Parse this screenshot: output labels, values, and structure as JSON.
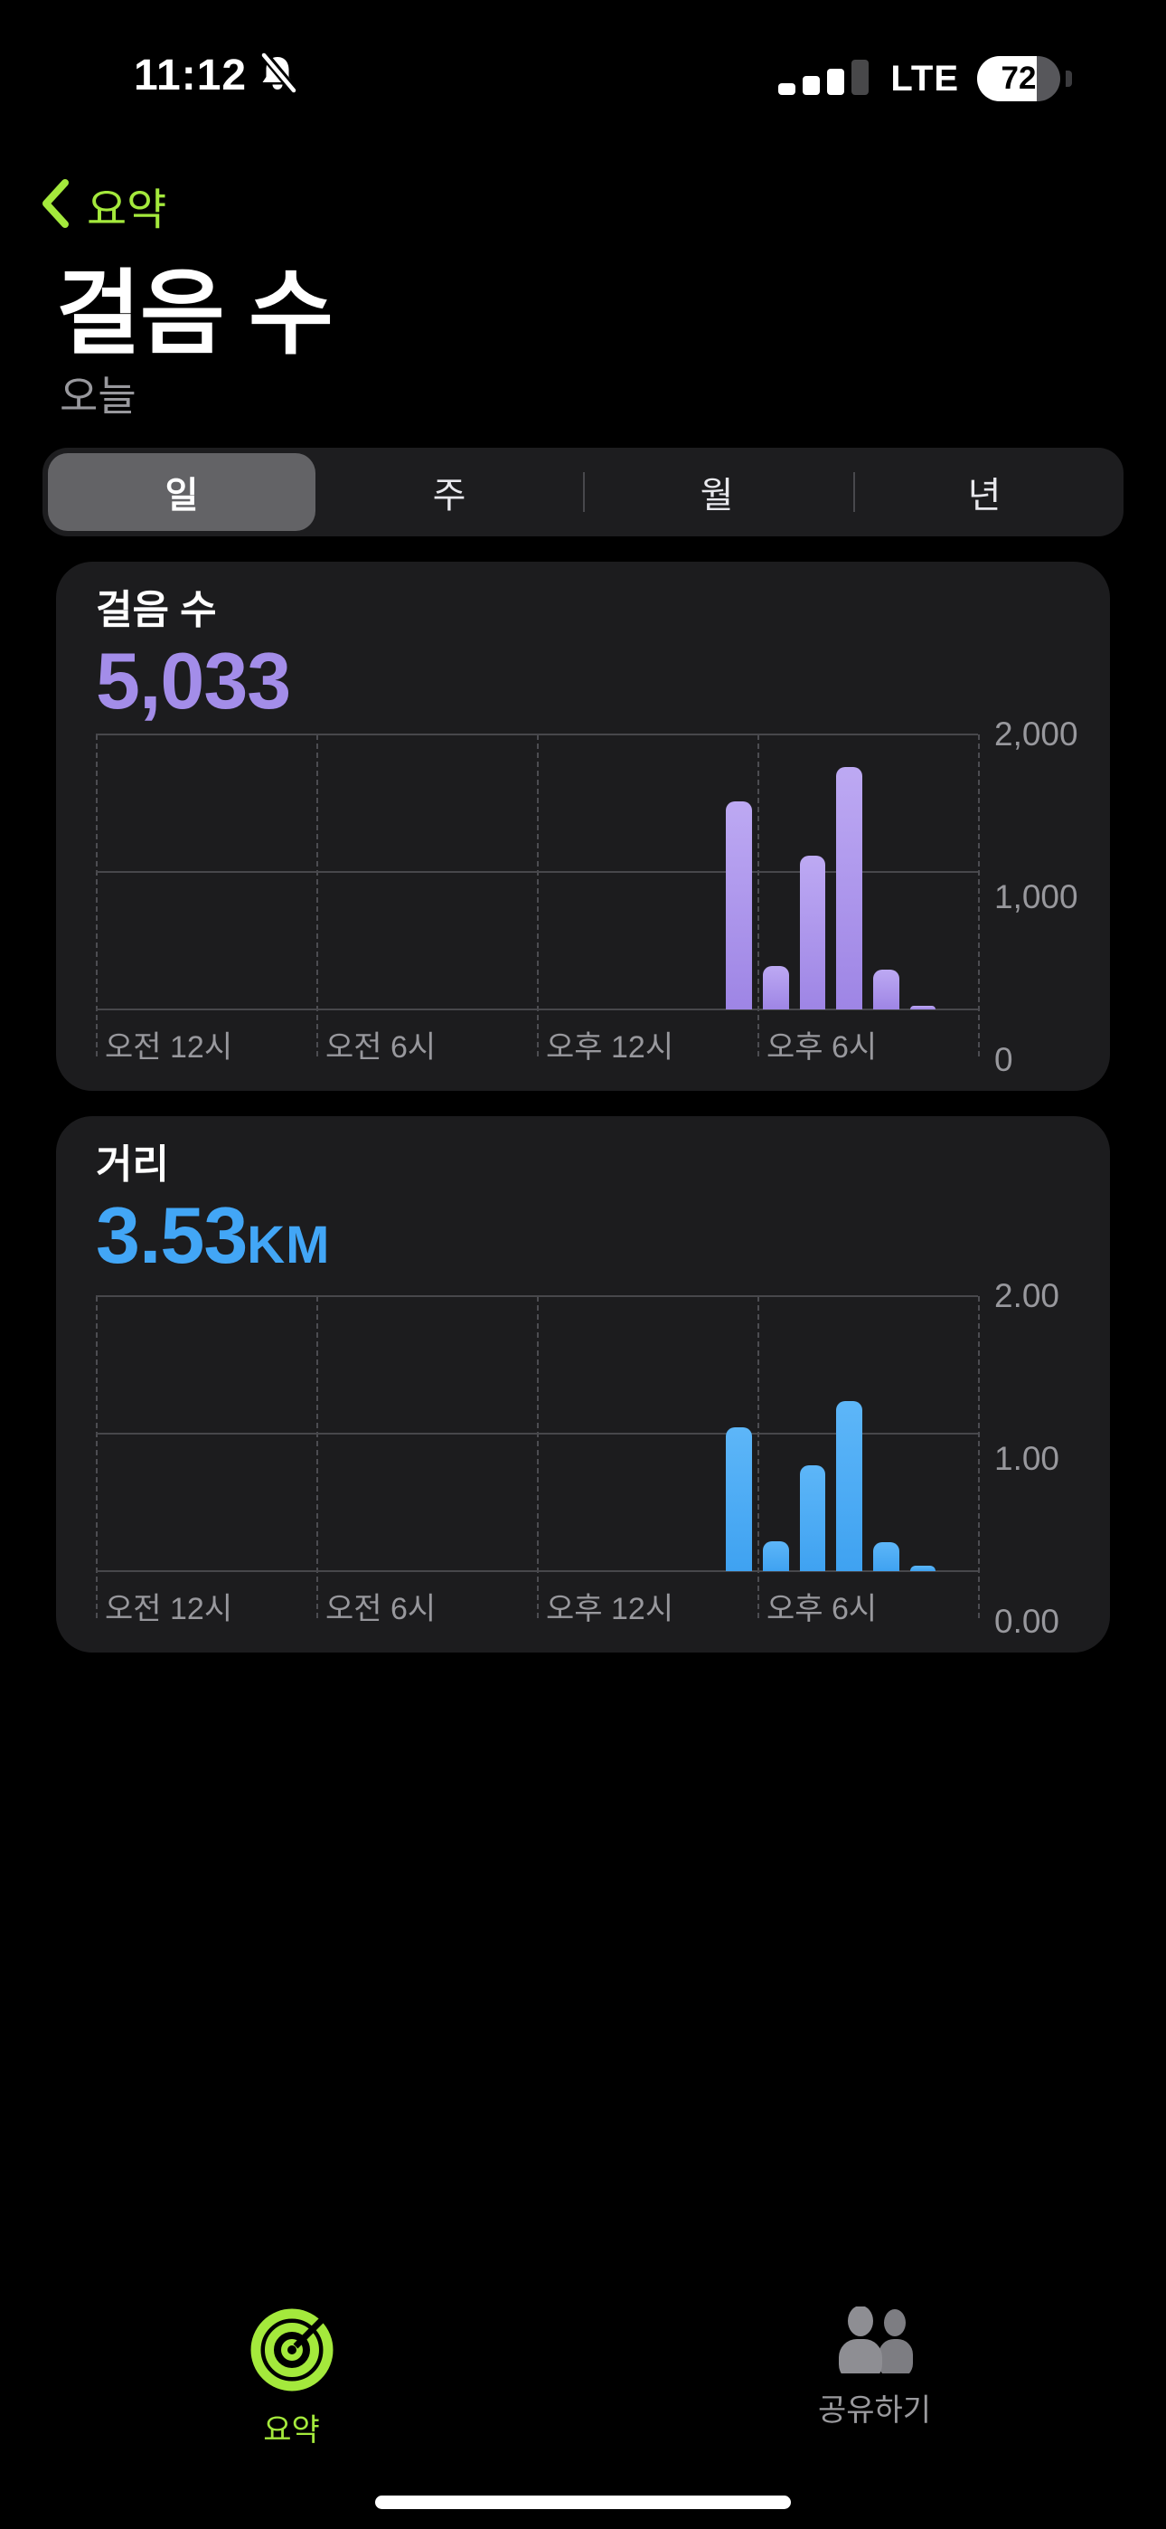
{
  "status_bar": {
    "time": "11:12",
    "silenced_icon": "bell-slash-icon",
    "signal_icon": "cellular-signal-icon",
    "network": "LTE",
    "battery_percent": "72"
  },
  "nav": {
    "back_label": "요약"
  },
  "header": {
    "title": "걸음 수",
    "subtitle": "오늘"
  },
  "segmented": {
    "labels": [
      "일",
      "주",
      "월",
      "년"
    ],
    "selected_index": 0
  },
  "cards": [
    {
      "title": "걸음 수",
      "value": "5,033",
      "unit": ""
    },
    {
      "title": "거리",
      "value": "3.53",
      "unit": "KM"
    }
  ],
  "chart_data": [
    {
      "type": "bar",
      "title": "걸음 수 (오늘, 시간별)",
      "total": 5033,
      "ymax": 2000,
      "ylim": [
        0,
        2000
      ],
      "grid": "on",
      "y_ticks": [
        "2,000",
        "1,000",
        "0"
      ],
      "x_ticks": [
        {
          "hour": 0,
          "label": "오전 12시"
        },
        {
          "hour": 6,
          "label": "오전 6시"
        },
        {
          "hour": 12,
          "label": "오후 12시"
        },
        {
          "hour": 18,
          "label": "오후 6시"
        }
      ],
      "hours_span": 24,
      "bars": [
        {
          "hour": 17,
          "value": 1513
        },
        {
          "hour": 18,
          "value": 317
        },
        {
          "hour": 19,
          "value": 1120
        },
        {
          "hour": 20,
          "value": 1764
        },
        {
          "hour": 21,
          "value": 290
        },
        {
          "hour": 22,
          "value": 29
        }
      ],
      "bar_gradient": [
        "#bda9f3",
        "#9e85e5"
      ]
    },
    {
      "type": "bar",
      "title": "거리 km (오늘, 시간별)",
      "total": 3.53,
      "ymax": 2,
      "ylim": [
        0,
        2
      ],
      "grid": "on",
      "y_ticks": [
        "2.00",
        "1.00",
        "0.00"
      ],
      "x_ticks": [
        {
          "hour": 0,
          "label": "오전 12시"
        },
        {
          "hour": 6,
          "label": "오전 6시"
        },
        {
          "hour": 12,
          "label": "오후 12시"
        },
        {
          "hour": 18,
          "label": "오후 6시"
        }
      ],
      "hours_span": 24,
      "bars": [
        {
          "hour": 17,
          "value": 1.05
        },
        {
          "hour": 18,
          "value": 0.22
        },
        {
          "hour": 19,
          "value": 0.77
        },
        {
          "hour": 20,
          "value": 1.24
        },
        {
          "hour": 21,
          "value": 0.21
        },
        {
          "hour": 22,
          "value": 0.04
        }
      ],
      "bar_gradient": [
        "#5db6f8",
        "#3fa2f1"
      ]
    }
  ],
  "tab_bar": {
    "items": [
      {
        "label": "요약",
        "icon": "activity-rings-icon",
        "active": true
      },
      {
        "label": "공유하기",
        "icon": "people-icon",
        "active": false
      }
    ]
  },
  "colors": {
    "accent_green": "#a4e93c",
    "steps_purple": "#a38de9",
    "distance_blue": "#42a6f6",
    "card_bg": "#1c1c1e",
    "segment_selected": "#636366",
    "grid_line": "#47474b",
    "muted_text": "#98989d"
  }
}
